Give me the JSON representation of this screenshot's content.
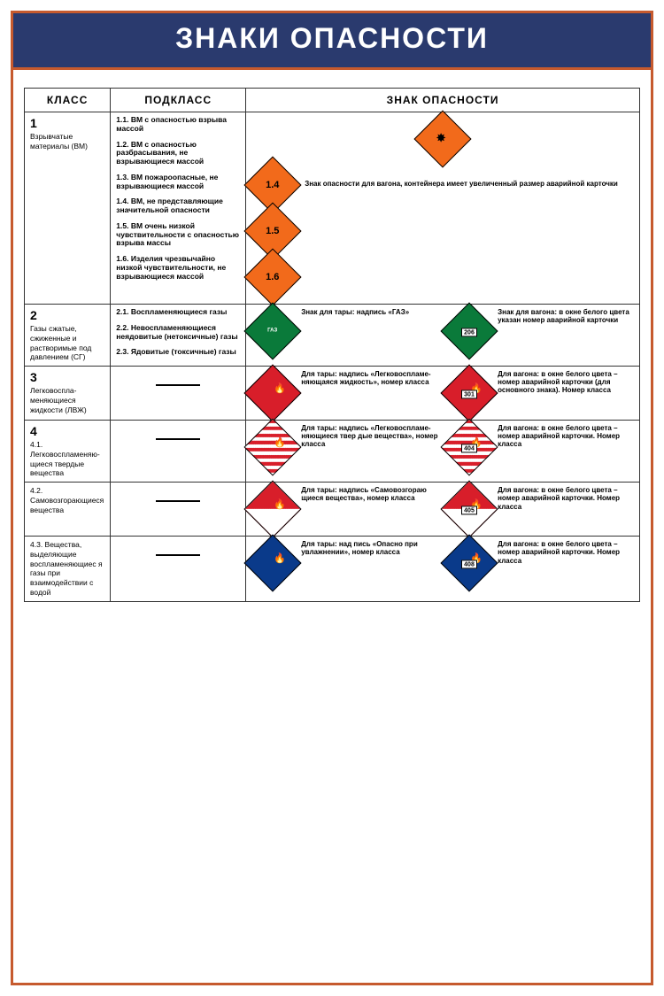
{
  "title": "ЗНАКИ ОПАСНОСТИ",
  "headers": {
    "class": "КЛАСС",
    "subclass": "ПОДКЛАСС",
    "sign": "ЗНАК ОПАСНОСТИ"
  },
  "colors": {
    "header_bg": "#2a3a6e",
    "header_text": "#ffffff",
    "border": "#c65a2e",
    "orange": "#f26a1b",
    "green": "#0a7a3a",
    "red": "#d81e2a",
    "blue": "#0a3a8a",
    "white": "#ffffff",
    "black": "#000000"
  },
  "row1": {
    "class_num": "1",
    "class_text": "Взрывчатые материалы (ВМ)",
    "subs": [
      "1.1. ВМ с опасностью взрыва массой",
      "1.2. ВМ с опасностью разбрасывания, не взрывающиеся массой",
      "1.3. ВМ пожароопасные, не взрывающиеся массой",
      "1.4. ВМ, не представляющие значительной опасности",
      "1.5. ВМ очень низкой чувствительности с опасностью взрыва массы",
      "1.6. Изделия чрезвычайно низкой чувствительности, не взрывающиеся массой"
    ],
    "note": "Знак опасности для вагона, контейнера имеет увеличенный размер аварийной карточки",
    "labels": {
      "d14": "1.4",
      "d15": "1.5",
      "d16": "1.6"
    }
  },
  "row2": {
    "class_num": "2",
    "class_text": "Газы сжатые, сжиженные и растворимые под давлением (СГ)",
    "subs": [
      "2.1. Воспламеняющиеся газы",
      "2.2. Невоспламеняющиеся неядовитые (нетоксичные) газы",
      "2.3. Ядовитые (токсичные) газы"
    ],
    "text1": "Знак для тары: надпись «ГАЗ»",
    "text2": "Знак для вагона: в окне белого цвета указан номер аварийной карточки",
    "gaz": "ГАЗ",
    "badge": "206"
  },
  "row3": {
    "class_num": "3",
    "class_text": "Легковоспла-меняющиеся жидкости (ЛВЖ)",
    "text1": "Для тары: надпись «Легковоспламе-няющаяся жидкость», номер класса",
    "text2": "Для вагона: в окне белого цвета – номер аварийной карточки (для основного знака). Номер класса",
    "badge": "301"
  },
  "row41": {
    "class_num": "4",
    "class_text": "4.1. Легковоспламеняю-щиеся твердые вещества",
    "text1": "Для тары: надпись «Легковоспламе-няющиеся твер дые вещества», номер класса",
    "text2": "Для вагона: в окне белого цвета – номер аварийной карточки. Номер класса",
    "badge": "404"
  },
  "row42": {
    "class_text": "4.2. Самовозгорающиеся вещества",
    "text1": "Для тары: надпись «Самовозгораю щиеся вещества», номер класса",
    "text2": "Для вагона: в окне белого цвета – номер аварийной карточки. Номер класса",
    "badge": "405"
  },
  "row43": {
    "class_text": "4.3. Вещества, выделяющие воспламеняющиес я газы при взаимодействии с водой",
    "text1": "Для тары: над пись «Опасно при увлажнении», номер класса",
    "text2": "Для вагона: в окне белого цвета – номер аварийной карточки. Номер класса",
    "badge": "408"
  }
}
